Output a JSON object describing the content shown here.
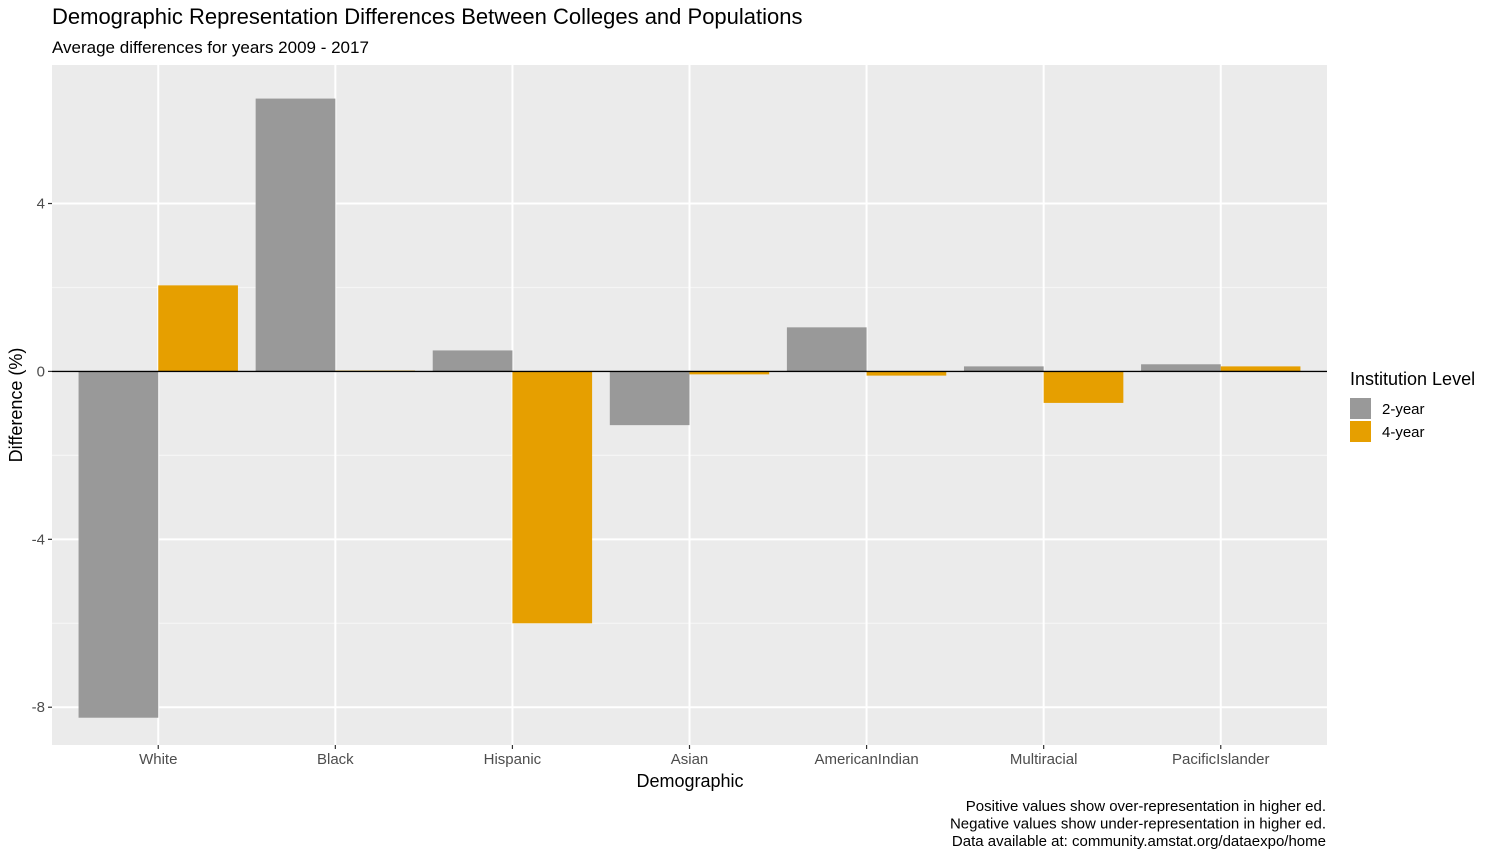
{
  "chart_data": {
    "type": "bar",
    "title": "Demographic Representation Differences Between Colleges and Populations",
    "subtitle": "Average differences for years 2009 - 2017",
    "xlabel": "Demographic",
    "ylabel": "Difference (%)",
    "categories": [
      "White",
      "Black",
      "Hispanic",
      "Asian",
      "AmericanIndian",
      "Multiracial",
      "PacificIslander"
    ],
    "series": [
      {
        "name": "2-year",
        "color": "#999999",
        "values": [
          -8.25,
          6.5,
          0.5,
          -1.28,
          1.05,
          0.12,
          0.17
        ]
      },
      {
        "name": "4-year",
        "color": "#E69F00",
        "values": [
          2.05,
          0.02,
          -6.0,
          -0.07,
          -0.1,
          -0.75,
          0.12
        ]
      }
    ],
    "ylim": [
      -8.9,
      7.3
    ],
    "yticks": [
      -8,
      -4,
      0,
      4
    ],
    "ytick_labels": [
      "-8",
      "-4",
      "0",
      "4"
    ],
    "grid": true,
    "legend": {
      "title": "Institution Level",
      "position": "right"
    },
    "caption": [
      "Positive values show over-representation in higher ed.",
      "Negative values show under-representation in higher ed.",
      "Data available at: community.amstat.org/dataexpo/home"
    ],
    "colors": {
      "panel": "#EBEBEB",
      "grid_major": "#FFFFFF",
      "grid_minor": "#F5F5F5",
      "zero_line": "#000000"
    }
  }
}
